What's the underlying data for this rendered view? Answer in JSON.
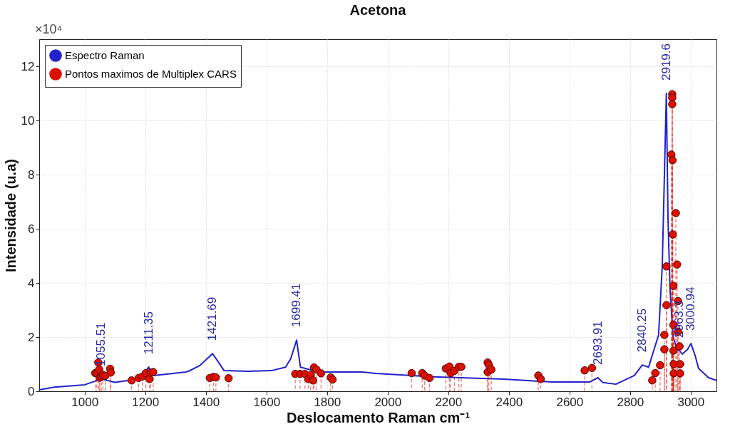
{
  "chart_data": {
    "type": "line",
    "title": "Acetona",
    "xlabel": "Deslocamento Raman cm⁻¹",
    "ylabel": "Intensidade (u.a)",
    "xlim": [
      850,
      3085
    ],
    "xticks": [
      1000,
      1200,
      1400,
      1600,
      1800,
      2000,
      2200,
      2400,
      2600,
      2800,
      3000
    ],
    "ylim": [
      0,
      13
    ],
    "yticks": [
      0,
      2,
      4,
      6,
      8,
      10,
      12
    ],
    "grid": true,
    "legend": "top left",
    "series": [
      {
        "name": "Espectro Raman",
        "color": "#2222cc",
        "x": [
          850,
          900,
          1000,
          1055.51,
          1100,
          1146,
          1190,
          1211.35,
          1225,
          1260,
          1334,
          1345,
          1380,
          1409,
          1421.69,
          1440,
          1460,
          1540,
          1616,
          1663,
          1680,
          1699.41,
          1712,
          1773,
          1914,
          1961,
          2149,
          2384,
          2542,
          2666,
          2693.91,
          2710,
          2753,
          2814,
          2840.25,
          2861,
          2894,
          2906,
          2919.6,
          2925,
          2932,
          2942,
          2955,
          2963.3,
          2972,
          2990,
          3000.94,
          3015,
          3026,
          3059,
          3085
        ],
        "values": [
          0.05,
          0.15,
          0.24,
          0.45,
          0.33,
          0.4,
          0.55,
          0.89,
          0.58,
          0.62,
          0.71,
          0.75,
          0.95,
          1.25,
          1.39,
          1.1,
          0.76,
          0.74,
          0.76,
          0.89,
          1.2,
          1.89,
          0.89,
          0.71,
          0.71,
          0.66,
          0.53,
          0.45,
          0.34,
          0.34,
          0.5,
          0.32,
          0.26,
          0.58,
          0.97,
          0.89,
          2.08,
          4.6,
          11,
          6.4,
          3.7,
          2,
          1.55,
          1.5,
          1.37,
          1.55,
          1.76,
          1.3,
          0.84,
          0.5,
          0.4
        ]
      },
      {
        "type": "lollipop",
        "name": "Pontos maximos de Multiplex CARS",
        "color": "#dd1100",
        "marker": "circle",
        "line_style": "dashed",
        "x": [
          1035,
          1040,
          1045,
          1048,
          1050,
          1055,
          1060,
          1068,
          1084,
          1086,
          1155,
          1178,
          1190,
          1202,
          1214,
          1218,
          1226,
          1413,
          1425,
          1433,
          1475,
          1695,
          1711,
          1727,
          1738,
          1746,
          1754,
          1757,
          1765,
          1780,
          1812,
          1818,
          2079,
          2114,
          2122,
          2138,
          2192,
          2204,
          2208,
          2220,
          2235,
          2243,
          2330,
          2330,
          2334,
          2342,
          2497,
          2505,
          2650,
          2674,
          2873,
          2883,
          2899,
          2913,
          2913,
          2920,
          2920,
          2936,
          2939,
          2939,
          2939,
          2940,
          2941,
          2943,
          2943,
          2943,
          2944,
          2944,
          2951,
          2955,
          2958,
          2958,
          2963,
          2965,
          2965
        ],
        "values": [
          0.67,
          0.67,
          1.06,
          0.8,
          0.5,
          0.55,
          0.6,
          0.57,
          0.83,
          0.69,
          0.4,
          0.49,
          0.54,
          0.67,
          0.45,
          0.68,
          0.71,
          0.49,
          0.53,
          0.51,
          0.48,
          0.64,
          0.64,
          0.64,
          0.45,
          0.6,
          0.4,
          0.88,
          0.8,
          0.66,
          0.51,
          0.43,
          0.67,
          0.67,
          0.58,
          0.49,
          0.84,
          0.91,
          0.67,
          0.75,
          0.9,
          0.9,
          1.06,
          0.71,
          0.97,
          0.8,
          0.58,
          0.45,
          0.77,
          0.86,
          0.4,
          0.67,
          0.96,
          2.08,
          1.55,
          4.61,
          3.18,
          8.74,
          10.97,
          10.84,
          10.6,
          8.53,
          5.79,
          3.89,
          2.45,
          1.5,
          1,
          0.66,
          6.58,
          4.68,
          3.33,
          2.2,
          1.66,
          1,
          0.66
        ]
      }
    ],
    "annotations": [
      "×10⁴",
      {
        "text": "1055.51",
        "x": 1055.51,
        "y": 0.45
      },
      {
        "text": "1211.35",
        "x": 1211.35,
        "y": 0.89
      },
      {
        "text": "1421.69",
        "x": 1421.69,
        "y": 1.39
      },
      {
        "text": "1699.41",
        "x": 1699.41,
        "y": 1.89
      },
      {
        "text": "2693.91",
        "x": 2693.91,
        "y": 0.5
      },
      {
        "text": "2840.25",
        "x": 2840.25,
        "y": 0.97
      },
      {
        "text": "2919.6",
        "x": 2919.6,
        "y": 11
      },
      {
        "text": "2963.3",
        "x": 2963.3,
        "y": 1.5
      },
      {
        "text": "3000.94",
        "x": 3000.94,
        "y": 1.76
      }
    ]
  }
}
